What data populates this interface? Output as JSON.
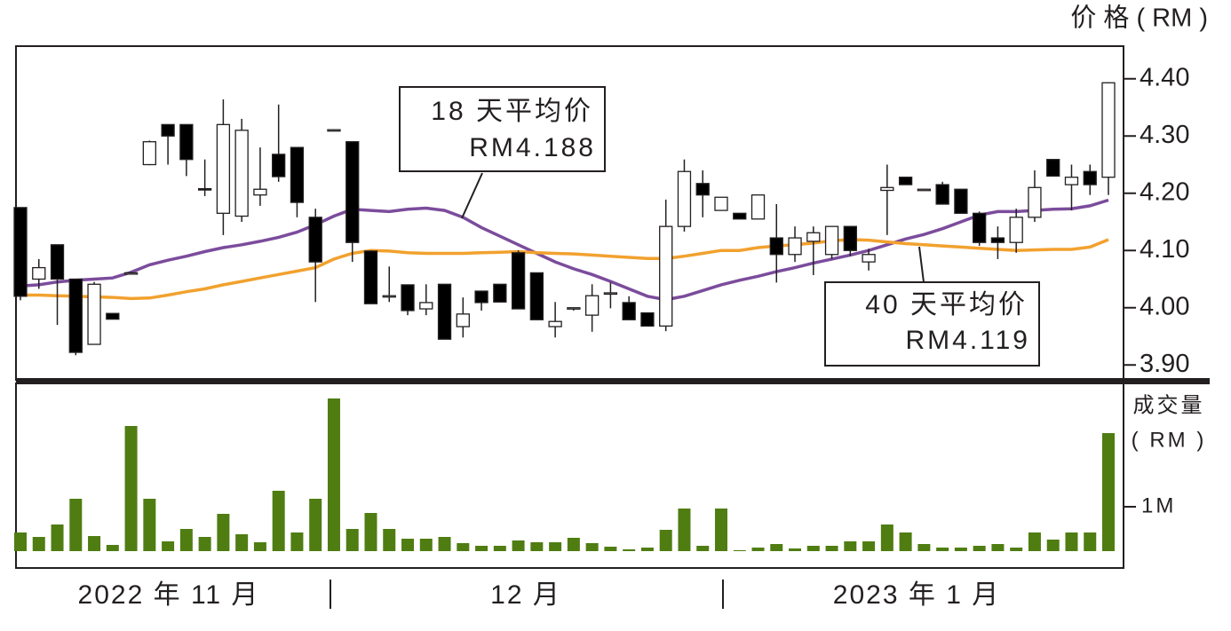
{
  "chart_data": {
    "type": "candlestick",
    "price_axis_title": "价 格 ( RM )",
    "categories": [
      null,
      null,
      null,
      null,
      null,
      null,
      null,
      null,
      null,
      null,
      null,
      null,
      null,
      null,
      null,
      null,
      null,
      null,
      null,
      null,
      null,
      null,
      null,
      null,
      null,
      null,
      null,
      null,
      null,
      null,
      null,
      null,
      null,
      null,
      null,
      null,
      null,
      null,
      null,
      null,
      null,
      null,
      null,
      null,
      null,
      null,
      null,
      null,
      null,
      null,
      null,
      null,
      null,
      null,
      null,
      null,
      null,
      null,
      null,
      null
    ],
    "open": [
      4.175,
      4.05,
      4.11,
      4.05,
      3.936,
      3.99,
      4.061,
      4.25,
      4.32,
      4.32,
      4.208,
      4.165,
      4.16,
      4.197,
      4.268,
      4.28,
      4.158,
      4.311,
      4.29,
      4.099,
      4.021,
      4.04,
      3.998,
      4.041,
      3.967,
      4.029,
      4.041,
      4.096,
      4.061,
      3.967,
      4.0,
      3.987,
      4.026,
      4.009,
      3.991,
      3.968,
      4.142,
      4.217,
      4.17,
      4.165,
      4.155,
      4.122,
      4.093,
      4.116,
      4.093,
      4.142,
      4.08,
      4.205,
      4.228,
      4.207,
      4.215,
      4.207,
      4.165,
      4.122,
      4.114,
      4.158,
      4.259,
      4.215,
      4.238,
      4.228
    ],
    "high": [
      4.175,
      4.085,
      4.11,
      4.05,
      4.045,
      3.99,
      4.063,
      4.292,
      4.32,
      4.32,
      4.259,
      4.364,
      4.33,
      4.28,
      4.355,
      4.28,
      4.173,
      4.312,
      4.29,
      4.1,
      4.072,
      4.04,
      4.041,
      4.041,
      4.018,
      4.029,
      4.041,
      4.1,
      4.061,
      4.01,
      4.0,
      4.041,
      4.044,
      4.02,
      3.991,
      4.189,
      4.259,
      4.24,
      4.193,
      4.165,
      4.197,
      4.181,
      4.142,
      4.142,
      4.142,
      4.142,
      4.103,
      4.25,
      4.228,
      4.207,
      4.22,
      4.207,
      4.168,
      4.142,
      4.173,
      4.24,
      4.259,
      4.25,
      4.25,
      4.394
    ],
    "low": [
      4.013,
      4.033,
      3.97,
      3.917,
      3.936,
      3.98,
      4.059,
      4.249,
      4.25,
      4.23,
      4.195,
      4.127,
      4.15,
      4.178,
      4.22,
      4.158,
      4.01,
      4.31,
      4.08,
      4.007,
      4.01,
      3.987,
      3.987,
      3.945,
      3.948,
      3.995,
      4.01,
      3.998,
      3.979,
      3.948,
      3.995,
      3.958,
      3.999,
      3.979,
      3.968,
      3.959,
      4.133,
      4.158,
      4.17,
      4.155,
      4.155,
      4.044,
      4.08,
      4.057,
      4.085,
      4.09,
      4.065,
      4.127,
      4.215,
      4.205,
      4.181,
      4.165,
      4.108,
      4.085,
      4.096,
      4.15,
      4.23,
      4.17,
      4.197,
      4.197
    ],
    "close": [
      4.02,
      4.07,
      4.05,
      3.922,
      4.041,
      3.98,
      4.061,
      4.29,
      4.3,
      4.259,
      4.207,
      4.32,
      4.31,
      4.207,
      4.229,
      4.184,
      4.08,
      4.311,
      4.114,
      4.007,
      4.021,
      3.995,
      4.009,
      3.945,
      3.989,
      4.009,
      4.01,
      3.998,
      3.979,
      3.976,
      4.0,
      4.021,
      4.026,
      3.979,
      3.968,
      4.142,
      4.238,
      4.197,
      4.193,
      4.155,
      4.197,
      4.093,
      4.122,
      4.131,
      4.142,
      4.1,
      4.093,
      4.21,
      4.215,
      4.207,
      4.181,
      4.165,
      4.114,
      4.114,
      4.158,
      4.21,
      4.23,
      4.228,
      4.215,
      4.393
    ],
    "up_color": "#ffffff",
    "down_color": "#000000",
    "moving_averages": [
      {
        "name": "18 天平均价",
        "label": "RM4.188",
        "color": "#7b4c9c",
        "values": [
          4.038,
          4.04,
          4.045,
          4.048,
          4.05,
          4.052,
          4.062,
          4.075,
          4.083,
          4.09,
          4.098,
          4.105,
          4.11,
          4.116,
          4.123,
          4.132,
          4.145,
          4.16,
          4.172,
          4.17,
          4.168,
          4.172,
          4.174,
          4.17,
          4.158,
          4.14,
          4.125,
          4.11,
          4.095,
          4.08,
          4.068,
          4.058,
          4.046,
          4.033,
          4.02,
          4.014,
          4.02,
          4.03,
          4.04,
          4.048,
          4.055,
          4.063,
          4.07,
          4.078,
          4.085,
          4.092,
          4.1,
          4.11,
          4.12,
          4.128,
          4.138,
          4.15,
          4.162,
          4.168,
          4.168,
          4.17,
          4.172,
          4.173,
          4.178,
          4.188
        ]
      },
      {
        "name": "40 天平均价",
        "label": "RM4.119",
        "color": "#f2a12e",
        "values": [
          4.022,
          4.022,
          4.021,
          4.02,
          4.019,
          4.018,
          4.016,
          4.017,
          4.022,
          4.028,
          4.033,
          4.04,
          4.046,
          4.052,
          4.058,
          4.064,
          4.07,
          4.085,
          4.095,
          4.1,
          4.099,
          4.096,
          4.095,
          4.095,
          4.095,
          4.096,
          4.097,
          4.098,
          4.096,
          4.095,
          4.094,
          4.092,
          4.09,
          4.088,
          4.086,
          4.086,
          4.09,
          4.095,
          4.1,
          4.1,
          4.105,
          4.108,
          4.11,
          4.113,
          4.117,
          4.119,
          4.118,
          4.115,
          4.112,
          4.11,
          4.108,
          4.106,
          4.104,
          4.102,
          4.1,
          4.101,
          4.102,
          4.102,
          4.106,
          4.119
        ]
      }
    ],
    "ylim": [
      3.874,
      4.457
    ],
    "yticks": [
      {
        "value": 3.9,
        "label": "3.90"
      },
      {
        "value": 4.0,
        "label": "4.00"
      },
      {
        "value": 4.1,
        "label": "4.10"
      },
      {
        "value": 4.2,
        "label": "4.20"
      },
      {
        "value": 4.3,
        "label": "4.30"
      },
      {
        "value": 4.4,
        "label": "4.40"
      }
    ],
    "volume": {
      "title_lines": [
        "成交量",
        "( RM )"
      ],
      "color": "#4f7d12",
      "values": [
        420000,
        320000,
        600000,
        1180000,
        340000,
        140000,
        2820000,
        1180000,
        220000,
        500000,
        320000,
        840000,
        380000,
        200000,
        1360000,
        420000,
        1180000,
        3440000,
        500000,
        860000,
        500000,
        280000,
        280000,
        320000,
        180000,
        120000,
        120000,
        240000,
        200000,
        200000,
        300000,
        180000,
        100000,
        40000,
        80000,
        480000,
        960000,
        120000,
        960000,
        20000,
        80000,
        160000,
        60000,
        120000,
        120000,
        220000,
        220000,
        600000,
        420000,
        160000,
        80000,
        80000,
        120000,
        160000,
        80000,
        420000,
        260000,
        420000,
        420000,
        2660000
      ],
      "ylim": [
        -380000,
        3780000
      ],
      "yticks": [
        {
          "value": 1000000,
          "label": "1M"
        }
      ]
    },
    "x_labels": [
      "2022 年 11 月",
      "12 月",
      "2023 年 1 月"
    ]
  }
}
